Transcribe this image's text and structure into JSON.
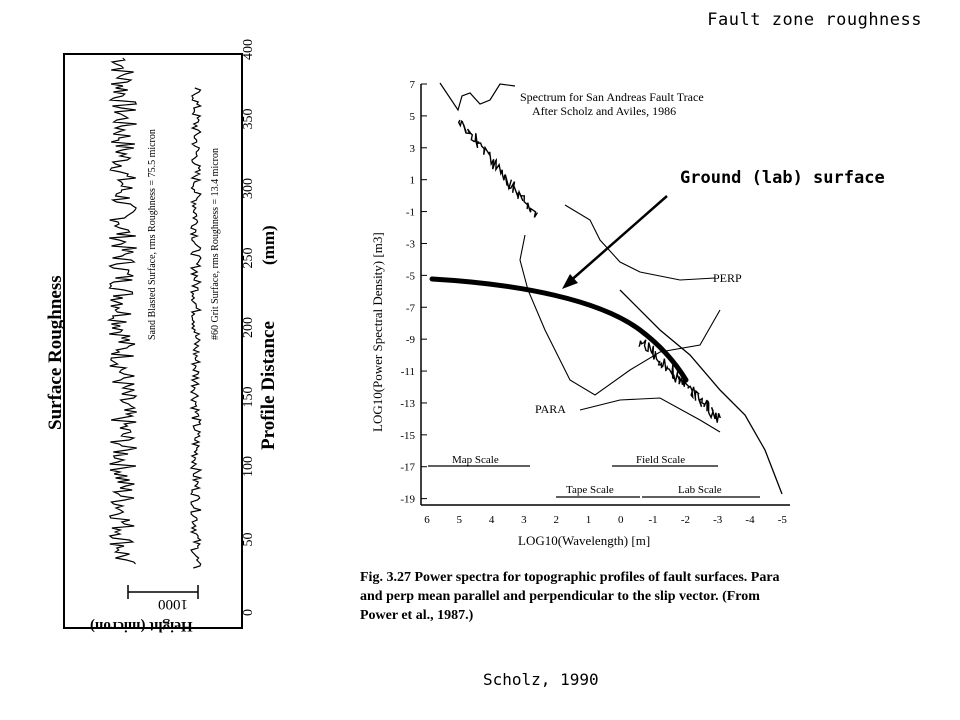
{
  "slide": {
    "title": "Fault zone roughness",
    "credit": "Scholz, 1990",
    "callout": "Ground (lab) surface"
  },
  "left_figure": {
    "heading": "Surface Roughness",
    "axis_label": "Profile Distance",
    "axis_unit": "(mm)",
    "height_label": "Height (micron)",
    "scale_bar_label": "1000",
    "ticks": [
      "0",
      "50",
      "100",
      "150",
      "200",
      "250",
      "300",
      "350",
      "400"
    ],
    "profile1_label": "Sand Blasted Surface, rms Roughness = 75.5 micron",
    "profile2_label": "#60 Grit Surface, rms Roughness = 13.4 micron"
  },
  "right_figure": {
    "title_line1": "Spectrum for San Andreas Fault Trace",
    "title_line2": "After Scholz and Aviles, 1986",
    "ylabel": "LOG10(Power Spectral Density) [m3]",
    "xlabel": "LOG10(Wavelength) [m]",
    "y_ticks": [
      "7",
      "5",
      "3",
      "1",
      "-1",
      "-3",
      "-5",
      "-7",
      "-9",
      "-11",
      "-13",
      "-15",
      "-17",
      "-19"
    ],
    "x_ticks": [
      "6",
      "5",
      "4",
      "3",
      "2",
      "1",
      "0",
      "-1",
      "-2",
      "-3",
      "-4",
      "-5"
    ],
    "labels": {
      "perp": "PERP",
      "para": "PARA"
    },
    "scales": {
      "map": "Map Scale",
      "field": "Field Scale",
      "tape": "Tape Scale",
      "lab": "Lab Scale"
    }
  },
  "caption": {
    "fig": "Fig. 3.27",
    "line1": "Power spectra for topographic profiles of fault surfaces. Para",
    "line2": "and perp mean parallel and perpendicular to the slip vector. (From",
    "line3": "Power et al., 1987.)"
  }
}
